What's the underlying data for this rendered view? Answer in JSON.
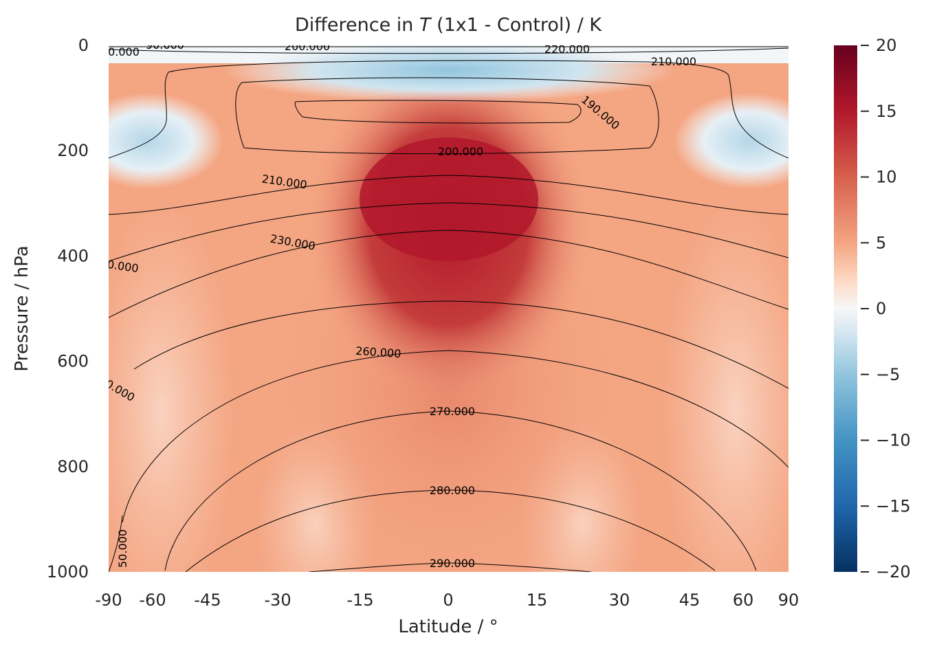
{
  "chart_data": {
    "type": "heatmap",
    "title_prefix": "Difference in ",
    "title_var": "T",
    "title_suffix": " (1x1 - Control) / K",
    "xlabel": "Latitude / °",
    "ylabel": "Pressure / hPa",
    "xlim": [
      -90,
      90
    ],
    "ylim": [
      1000,
      0
    ],
    "xticks": [
      -90,
      -60,
      -45,
      -30,
      -15,
      0,
      15,
      30,
      45,
      60,
      90
    ],
    "xtick_labels": [
      "-90",
      "-60",
      "-45",
      "-30",
      "-15",
      "0",
      "15",
      "30",
      "45",
      "60",
      "90"
    ],
    "yticks": [
      0,
      200,
      400,
      600,
      800,
      1000
    ],
    "ytick_labels": [
      "0",
      "200",
      "400",
      "600",
      "800",
      "1000"
    ],
    "colorbar": {
      "cmap": "RdBu_r",
      "range": [
        -20,
        20
      ],
      "levels": 41,
      "ticks": [
        20,
        15,
        10,
        5,
        0,
        -5,
        -10,
        -15,
        -20
      ],
      "tick_labels": [
        "20",
        "15",
        "10",
        "5",
        "0",
        "−5",
        "−10",
        "−15",
        "−20"
      ]
    },
    "filled_field": {
      "description_units": "K",
      "features": [
        {
          "name": "tropical upper-troposphere warming max",
          "lat": 0,
          "pressure": 300,
          "value": 15
        },
        {
          "name": "near-surface warming",
          "lat": 0,
          "pressure": 950,
          "value": 7
        },
        {
          "name": "stratospheric cooling",
          "lat": 0,
          "pressure": 60,
          "value": -5
        },
        {
          "name": "high-latitude tropopause cooling S",
          "lat": -82,
          "pressure": 195,
          "value": -4
        },
        {
          "name": "high-latitude tropopause cooling N",
          "lat": 82,
          "pressure": 195,
          "value": -4
        }
      ]
    },
    "contour_labels": [
      {
        "text": "200.000",
        "lat": -43,
        "pressure": 2
      },
      {
        "text": "220.000",
        "lat": 20,
        "pressure": 4
      },
      {
        "text": "210.000",
        "lat": 45,
        "pressure": 30
      },
      {
        "text": "190.000",
        "lat": 27,
        "pressure": 130
      },
      {
        "text": "200.000",
        "lat": 3,
        "pressure": 205
      },
      {
        "text": "210.000",
        "lat": -33,
        "pressure": 260
      },
      {
        "text": "230.000",
        "lat": -31,
        "pressure": 370
      },
      {
        "text": "260.000",
        "lat": -16,
        "pressure": 585
      },
      {
        "text": "270.000",
        "lat": 1,
        "pressure": 693
      },
      {
        "text": "280.000",
        "lat": 1,
        "pressure": 845
      },
      {
        "text": "290.000",
        "lat": 1,
        "pressure": 985
      },
      {
        "text": "50.000",
        "lat": -86,
        "pressure": 960
      },
      {
        "text": "0.000",
        "lat": -87,
        "pressure": 415
      },
      {
        "text": "0.000",
        "lat": -87,
        "pressure": 665
      },
      {
        "text": "0.000",
        "lat": -87,
        "pressure": 10
      },
      {
        "text": "90.000",
        "lat": -78,
        "pressure": 2
      }
    ]
  }
}
